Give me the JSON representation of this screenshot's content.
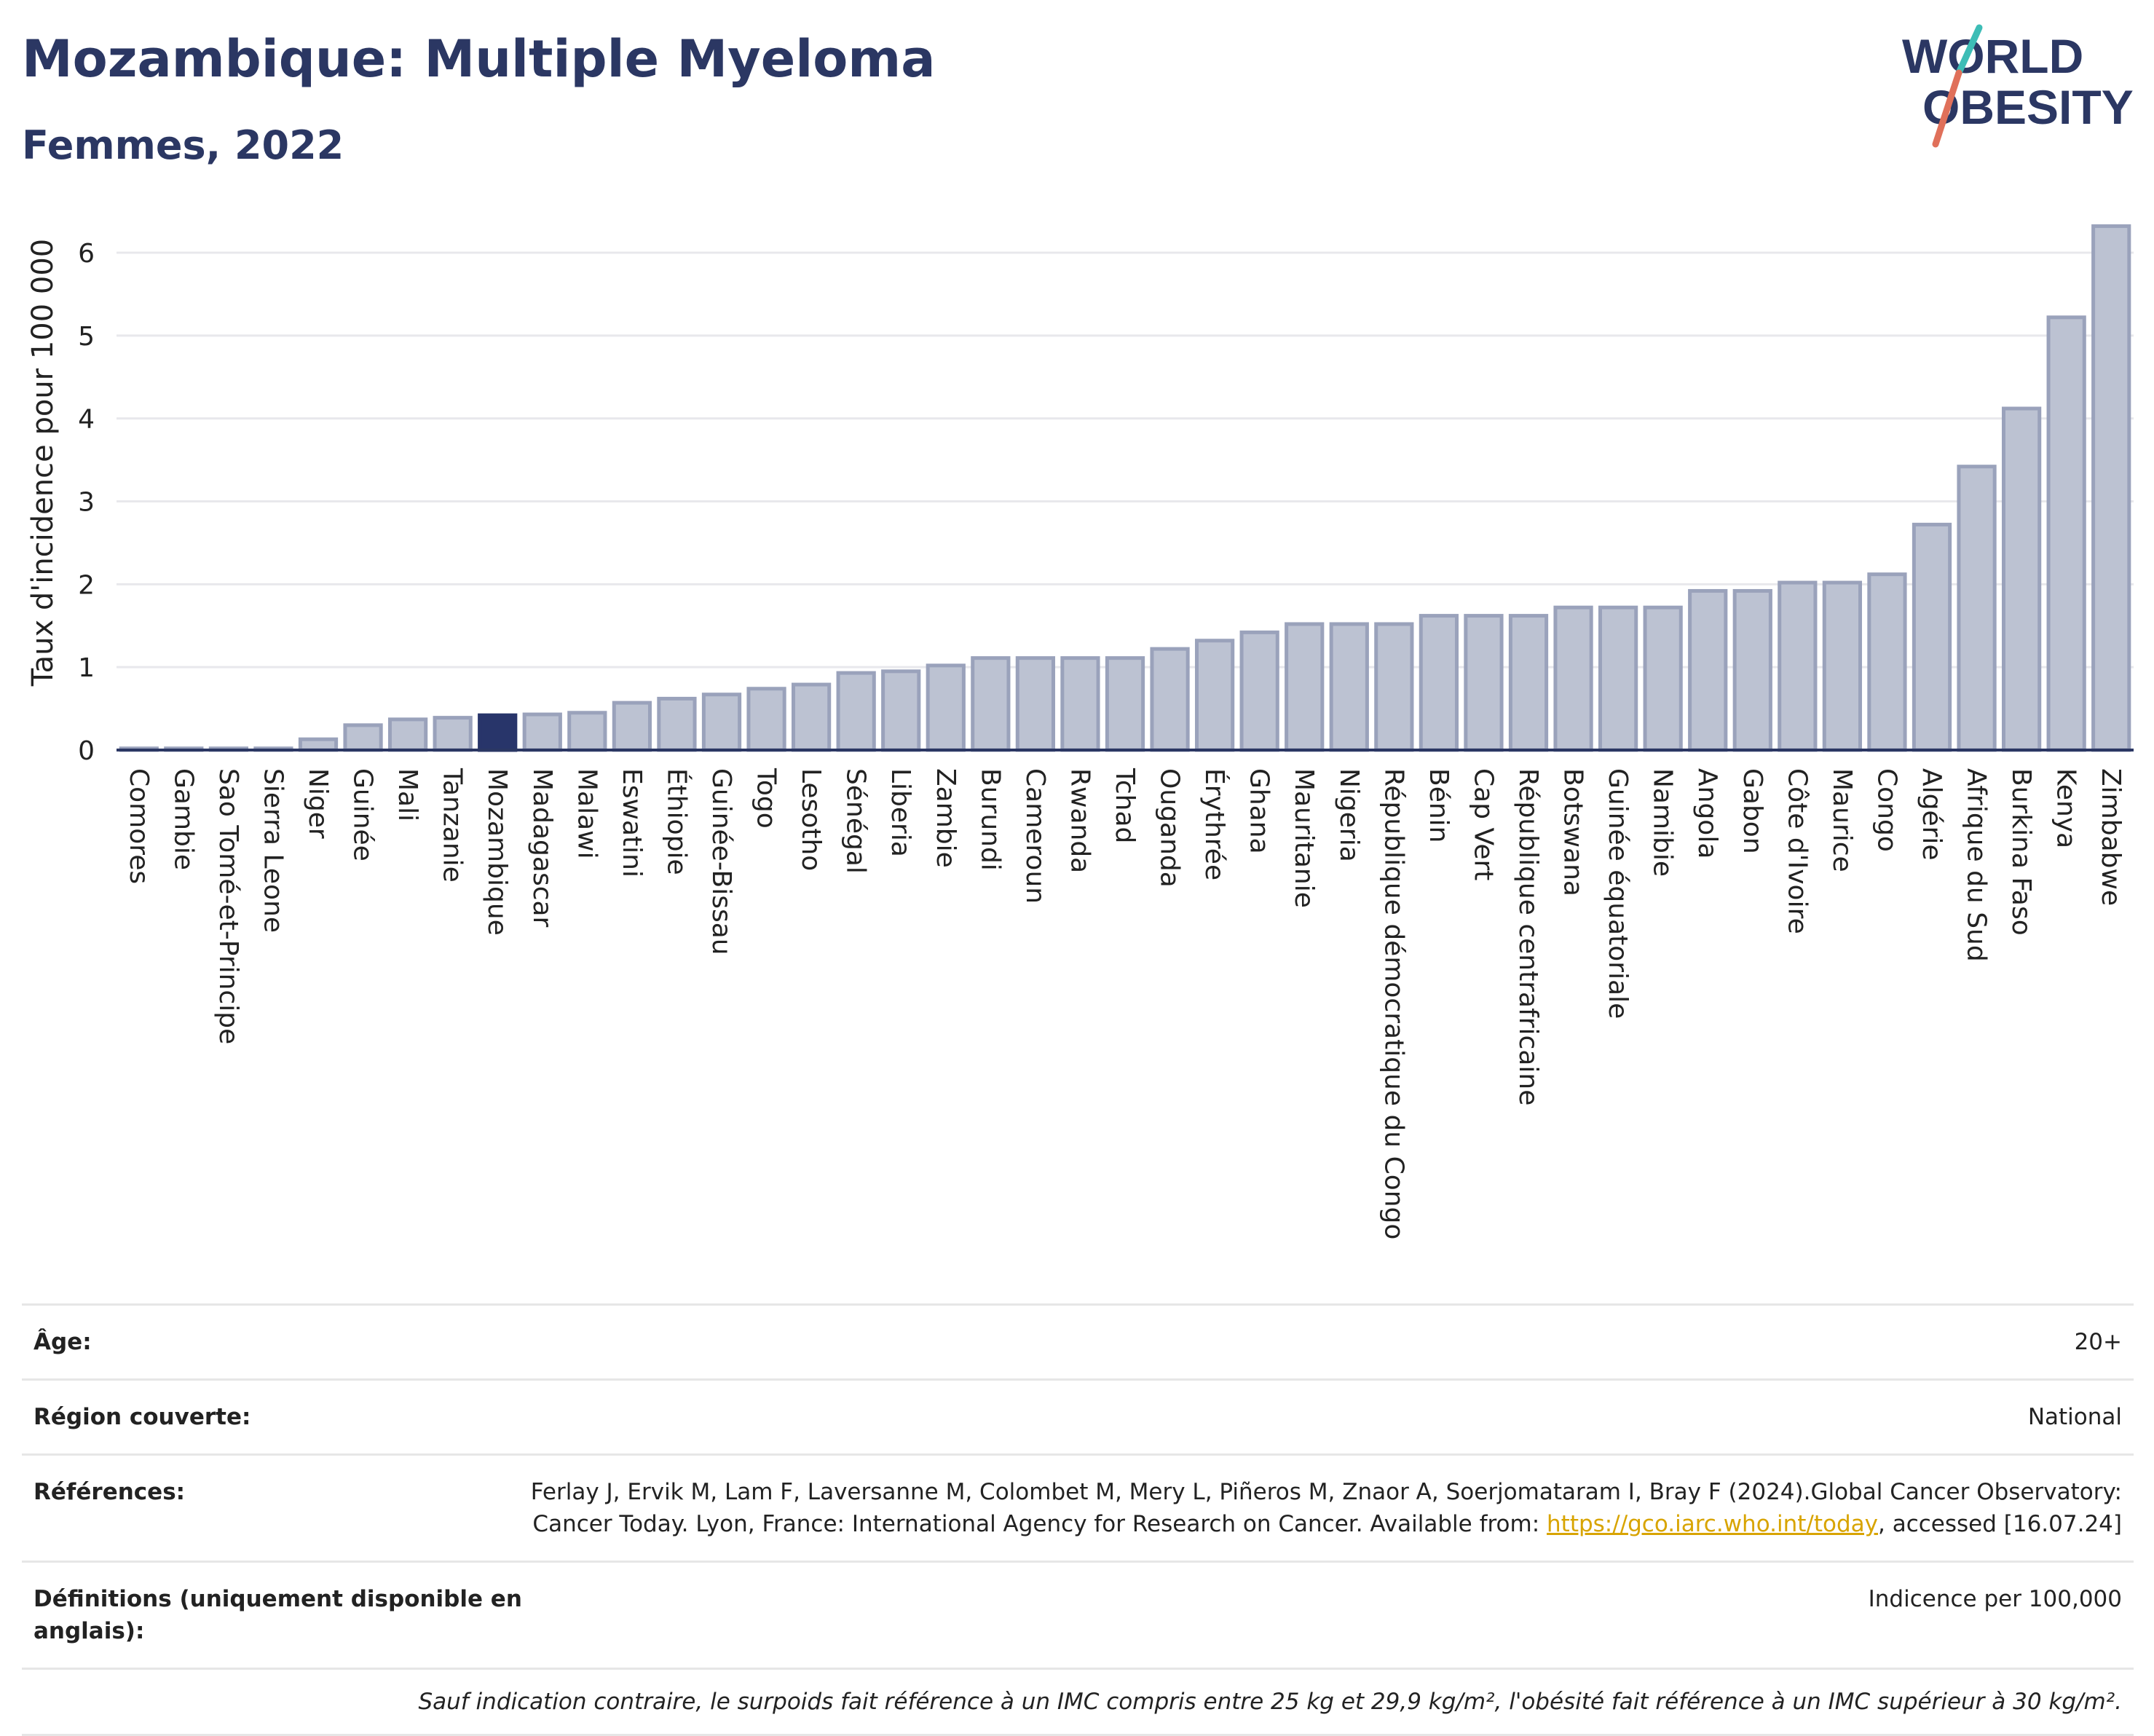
{
  "header": {
    "title": "Mozambique: Multiple Myeloma",
    "subtitle": "Femmes, 2022"
  },
  "logo": {
    "line1": "WORLD",
    "line2": "OBESITY"
  },
  "colors": {
    "bar": "#bcc2d2",
    "bar_stroke": "#9aa2bb",
    "highlight": "#28356a",
    "title": "#2b3763",
    "logo_teal": "#3dbdb6",
    "logo_red": "#e0705a",
    "link": "#d8a400"
  },
  "chart_data": {
    "type": "bar",
    "ylabel": "Taux d'incidence pour 100 000",
    "ylim": [
      0,
      6.5
    ],
    "yticks": [
      0,
      1,
      2,
      3,
      4,
      5,
      6
    ],
    "grid": true,
    "highlight": "Mozambique",
    "categories": [
      "Comores",
      "Gambie",
      "Sao Tomé-et-Principe",
      "Sierra Leone",
      "Niger",
      "Guinée",
      "Mali",
      "Tanzanie",
      "Mozambique",
      "Madagascar",
      "Malawi",
      "Eswatini",
      "Éthiopie",
      "Guinée-Bissau",
      "Togo",
      "Lesotho",
      "Sénégal",
      "Liberia",
      "Zambie",
      "Burundi",
      "Cameroun",
      "Rwanda",
      "Tchad",
      "Ouganda",
      "Érythrée",
      "Ghana",
      "Mauritanie",
      "Nigeria",
      "République démocratique du Congo",
      "Bénin",
      "Cap Vert",
      "République centrafricaine",
      "Botswana",
      "Guinée équatoriale",
      "Namibie",
      "Angola",
      "Gabon",
      "Côte d'Ivoire",
      "Maurice",
      "Congo",
      "Algérie",
      "Afrique du Sud",
      "Burkina Faso",
      "Kenya",
      "Zimbabwe"
    ],
    "values": [
      0.02,
      0.02,
      0.02,
      0.02,
      0.13,
      0.3,
      0.37,
      0.39,
      0.42,
      0.43,
      0.45,
      0.57,
      0.62,
      0.67,
      0.74,
      0.79,
      0.93,
      0.95,
      1.02,
      1.11,
      1.11,
      1.11,
      1.11,
      1.22,
      1.32,
      1.42,
      1.52,
      1.52,
      1.52,
      1.62,
      1.62,
      1.62,
      1.72,
      1.72,
      1.72,
      1.92,
      1.92,
      2.02,
      2.02,
      2.12,
      2.72,
      3.42,
      4.12,
      5.22,
      6.32
    ]
  },
  "meta": {
    "age_label": "Âge:",
    "age_value": "20+",
    "region_label": "Région couverte:",
    "region_value": "National",
    "ref_label": "Références:",
    "ref_text_1": "Ferlay J, Ervik M, Lam F, Laversanne M, Colombet M, Mery L, Piñeros M, Znaor A, Soerjomataram I, Bray F (2024).Global Cancer Observatory: Cancer Today. Lyon, France: International Agency for Research on Cancer. Available from: ",
    "ref_link": "https://gco.iarc.who.int/today",
    "ref_text_2": ", accessed [16.07.24]",
    "def_label": "Définitions (uniquement disponible en anglais):",
    "def_value": "Indicence per 100,000",
    "note": "Sauf indication contraire, le surpoids fait référence à un IMC compris entre 25 kg et 29,9 kg/m², l'obésité fait référence à un IMC supérieur à 30 kg/m²."
  }
}
